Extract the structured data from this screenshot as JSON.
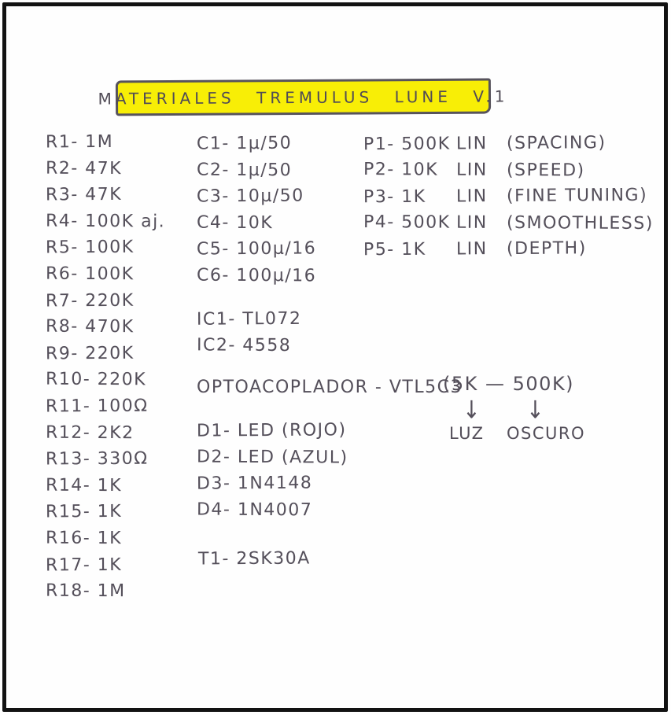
{
  "title": {
    "text": "MATERIALES TREMULUS LUNE V.1"
  },
  "colors": {
    "paper": "#fefefe",
    "ink": "#544f5a",
    "highlight": "#f8ee06",
    "frame": "#121212"
  },
  "resistors": [
    "R1- 1M",
    "R2- 47K",
    "R3- 47K",
    "R4- 100K aj.",
    "R5- 100K",
    "R6- 100K",
    "R7- 220K",
    "R8- 470K",
    "R9- 220K",
    "R10- 220K",
    "R11- 100Ω",
    "R12- 2K2",
    "R13- 330Ω",
    "R14- 1K",
    "R15- 1K",
    "R16- 1K",
    "R17- 1K",
    "R18- 1M"
  ],
  "capacitors": [
    "C1- 1µ/50",
    "C2- 1µ/50",
    "C3- 10µ/50",
    "C4- 10K",
    "C5- 100µ/16",
    "C6- 100µ/16"
  ],
  "ics": [
    "IC1- TL072",
    "IC2- 4558"
  ],
  "opto": {
    "label": "OPTOACOPLADOR - VTL5C3",
    "range": "(5K — 500K)",
    "low_label": "LUZ",
    "high_label": "OSCURO"
  },
  "diodes": [
    "D1- LED (ROJO)",
    "D2- LED (AZUL)",
    "D3- 1N4148",
    "D4- 1N4007"
  ],
  "transistors": [
    "T1- 2SK30A"
  ],
  "pots": [
    {
      "name": "P1- 500K",
      "taper": "LIN",
      "role": "(SPACING)"
    },
    {
      "name": "P2- 10K",
      "taper": "LIN",
      "role": "(SPEED)"
    },
    {
      "name": "P3- 1K",
      "taper": "LIN",
      "role": "(FINE TUNING)"
    },
    {
      "name": "P4- 500K",
      "taper": "LIN",
      "role": "(SMOOTHLESS)"
    },
    {
      "name": "P5- 1K",
      "taper": "LIN",
      "role": "(DEPTH)"
    }
  ],
  "icons": {
    "down_arrow": "↓"
  }
}
